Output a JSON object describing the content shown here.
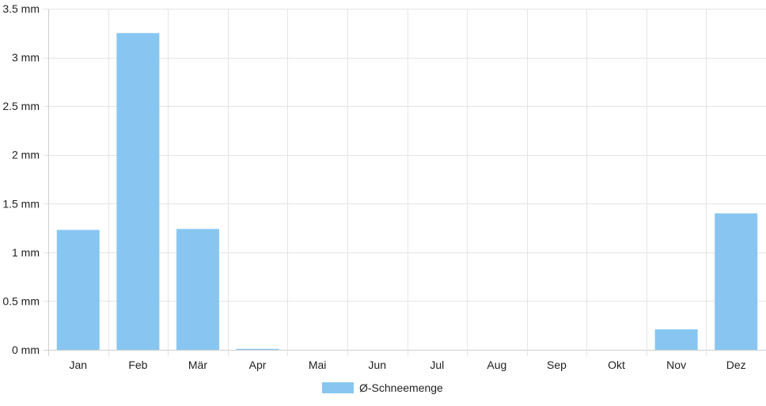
{
  "chart_data": {
    "type": "bar",
    "categories": [
      "Jan",
      "Feb",
      "Mär",
      "Apr",
      "Mai",
      "Jun",
      "Jul",
      "Aug",
      "Sep",
      "Okt",
      "Nov",
      "Dez"
    ],
    "series": [
      {
        "name": "Ø-Schneemenge",
        "values": [
          1.23,
          3.25,
          1.24,
          0.01,
          0,
          0,
          0,
          0,
          0,
          0,
          0.21,
          1.4
        ]
      }
    ],
    "ylim": [
      0,
      3.5
    ],
    "yticks": [
      0,
      0.5,
      1,
      1.5,
      2,
      2.5,
      3,
      3.5
    ],
    "ytick_labels": [
      "0 mm",
      "0.5 mm",
      "1 mm",
      "1.5 mm",
      "2 mm",
      "2.5 mm",
      "3 mm",
      "3.5 mm"
    ],
    "grid": true,
    "legend_position": "bottom",
    "colors": {
      "bar": "#88c6f1",
      "grid": "#e5e5e5",
      "axis": "#cfcfcf",
      "text": "#222222"
    }
  }
}
